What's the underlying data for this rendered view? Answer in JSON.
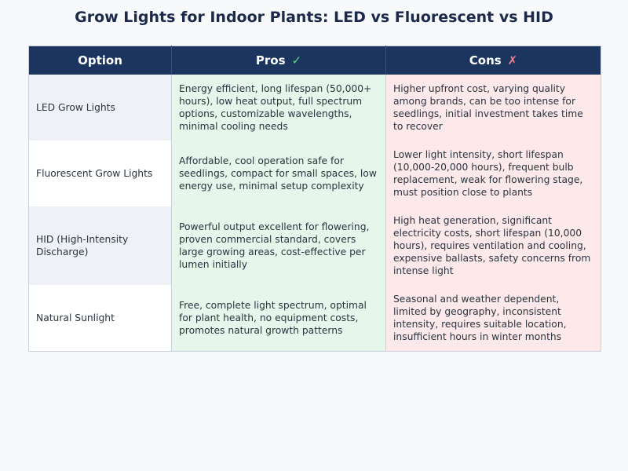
{
  "title": "Grow Lights for Indoor Plants: LED vs Fluorescent vs HID",
  "table": {
    "headers": {
      "option": "Option",
      "pros": "Pros",
      "pros_icon": "✓",
      "cons": "Cons",
      "cons_icon": "✗"
    },
    "rows": [
      {
        "option": "LED Grow Lights",
        "pros": "Energy efficient, long lifespan (50,000+ hours), low heat output, full spectrum options, customizable wavelengths, minimal cooling needs",
        "cons": "Higher upfront cost, varying quality among brands, can be too intense for seedlings, initial investment takes time to recover"
      },
      {
        "option": "Fluorescent Grow Lights",
        "pros": "Affordable, cool operation safe for seedlings, compact for small spaces, low energy use, minimal setup complexity",
        "cons": "Lower light intensity, short lifespan (10,000-20,000 hours), frequent bulb replacement, weak for flowering stage, must position close to plants"
      },
      {
        "option": "HID (High-Intensity Discharge)",
        "pros": "Powerful output excellent for flowering, proven commercial standard, covers large growing areas, cost-effective per lumen initially",
        "cons": "High heat generation, significant electricity costs, short lifespan (10,000 hours), requires ventilation and cooling, expensive ballasts, safety concerns from intense light"
      },
      {
        "option": "Natural Sunlight",
        "pros": "Free, complete light spectrum, optimal for plant health, no equipment costs, promotes natural growth patterns",
        "cons": "Seasonal and weather dependent, limited by geography, inconsistent intensity, requires suitable location, insufficient hours in winter months"
      }
    ]
  },
  "colors": {
    "header_bg": "#1c355e",
    "pros_bg": "#e6f6ea",
    "cons_bg": "#fde9e9",
    "check": "#5fd38a",
    "cross": "#f0808a"
  }
}
